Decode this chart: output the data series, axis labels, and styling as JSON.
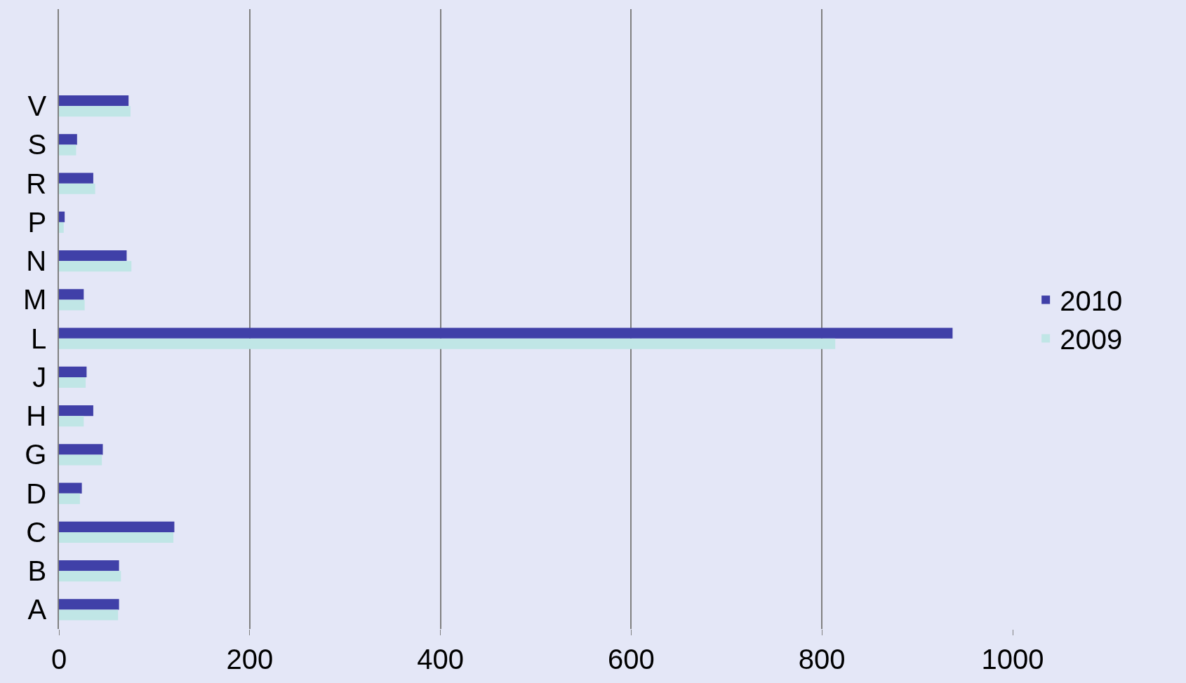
{
  "chart_data": {
    "type": "bar",
    "orientation": "horizontal",
    "categories": [
      null,
      null,
      "V",
      "S",
      "R",
      "P",
      "N",
      "M",
      "L",
      "J",
      "H",
      "G",
      "D",
      "C",
      "B",
      "A"
    ],
    "series": [
      {
        "name": "2010",
        "color": "#4040a8",
        "values": [
          null,
          null,
          73,
          19,
          36,
          6,
          71,
          26,
          937,
          29,
          36,
          46,
          24,
          121,
          63,
          63
        ]
      },
      {
        "name": "2009",
        "color": "#c0e6e6",
        "values": [
          null,
          null,
          75,
          18,
          38,
          5,
          76,
          27,
          814,
          28,
          26,
          45,
          22,
          120,
          65,
          62
        ]
      }
    ],
    "xlim": [
      0,
      1000
    ],
    "xticks": [
      0,
      200,
      400,
      600,
      800,
      1000
    ],
    "grid": "x",
    "legend": "right"
  }
}
